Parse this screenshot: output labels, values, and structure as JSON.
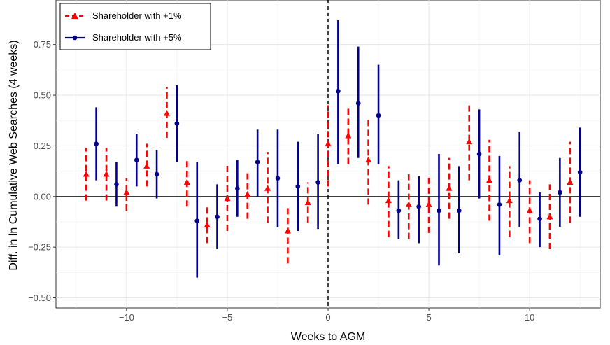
{
  "chart_data": {
    "type": "scatter",
    "subtype": "point-range",
    "title": "",
    "xlabel": "Weeks to AGM",
    "ylabel": "Diff. in ln Cumulative Web Searches (4 weeks)",
    "xlim": [
      -13.5,
      13.5
    ],
    "ylim": [
      -0.55,
      0.97
    ],
    "x_ticks": [
      -10,
      -5,
      0,
      5,
      10
    ],
    "x_tick_labels": [
      "−10",
      "−5",
      "0",
      "5",
      "10"
    ],
    "y_ticks": [
      -0.5,
      -0.25,
      0,
      0.25,
      0.5,
      0.75
    ],
    "y_tick_labels": [
      "−0.50",
      "−0.25",
      "0.00",
      "0.25",
      "0.50",
      "0.75"
    ],
    "grid": true,
    "reference_lines": {
      "horizontal": 0,
      "vertical_dashed": 0
    },
    "legend_position": "top-left",
    "series": [
      {
        "name": "Shareholder with +1%",
        "color": "#ff0000",
        "marker": "triangle",
        "line_style": "dashed",
        "x": [
          -12,
          -11,
          -10,
          -9,
          -8,
          -7,
          -6,
          -5,
          -4,
          -3,
          -2,
          -1,
          0,
          1,
          2,
          3,
          4,
          5,
          6,
          7,
          8,
          9,
          10,
          11,
          12
        ],
        "estimate": [
          0.11,
          0.11,
          0.02,
          0.15,
          0.41,
          0.07,
          -0.14,
          -0.01,
          0.01,
          0.04,
          -0.17,
          -0.03,
          0.26,
          0.3,
          0.18,
          -0.02,
          -0.04,
          -0.04,
          0.04,
          0.27,
          0.08,
          -0.02,
          -0.07,
          -0.1,
          0.07
        ],
        "lower": [
          -0.02,
          -0.02,
          -0.07,
          0.05,
          0.29,
          -0.05,
          -0.23,
          -0.17,
          -0.11,
          -0.13,
          -0.33,
          -0.13,
          0.05,
          0.16,
          -0.04,
          -0.2,
          -0.21,
          -0.18,
          -0.11,
          0.08,
          -0.12,
          -0.2,
          -0.23,
          -0.26,
          -0.13
        ],
        "upper": [
          0.24,
          0.24,
          0.09,
          0.26,
          0.54,
          0.19,
          -0.04,
          0.16,
          0.13,
          0.22,
          -0.04,
          0.07,
          0.45,
          0.45,
          0.38,
          0.15,
          0.11,
          0.11,
          0.19,
          0.46,
          0.28,
          0.15,
          0.08,
          0.06,
          0.27
        ]
      },
      {
        "name": "Shareholder with +5%",
        "color": "#00008b",
        "marker": "circle",
        "line_style": "solid",
        "x": [
          -11.5,
          -10.5,
          -9.5,
          -8.5,
          -7.5,
          -6.5,
          -5.5,
          -4.5,
          -3.5,
          -2.5,
          -1.5,
          -0.5,
          0.5,
          1.5,
          2.5,
          3.5,
          4.5,
          5.5,
          6.5,
          7.5,
          8.5,
          9.5,
          10.5,
          11.5,
          12.5
        ],
        "estimate": [
          0.26,
          0.06,
          0.18,
          0.11,
          0.36,
          -0.12,
          -0.1,
          0.04,
          0.17,
          0.09,
          0.05,
          0.07,
          0.52,
          0.46,
          0.4,
          -0.07,
          -0.05,
          -0.07,
          -0.07,
          0.21,
          -0.04,
          0.08,
          -0.11,
          0.02,
          0.12
        ],
        "lower": [
          0.08,
          -0.05,
          0.05,
          -0.01,
          0.17,
          -0.4,
          -0.26,
          -0.1,
          0.0,
          -0.15,
          -0.17,
          -0.16,
          0.16,
          0.19,
          0.16,
          -0.21,
          -0.23,
          -0.34,
          -0.28,
          -0.01,
          -0.29,
          -0.15,
          -0.25,
          -0.15,
          -0.1
        ],
        "upper": [
          0.44,
          0.17,
          0.31,
          0.23,
          0.55,
          0.17,
          0.06,
          0.18,
          0.33,
          0.33,
          0.27,
          0.31,
          0.87,
          0.74,
          0.65,
          0.08,
          0.1,
          0.21,
          0.15,
          0.43,
          0.2,
          0.32,
          0.02,
          0.19,
          0.34
        ]
      }
    ]
  }
}
